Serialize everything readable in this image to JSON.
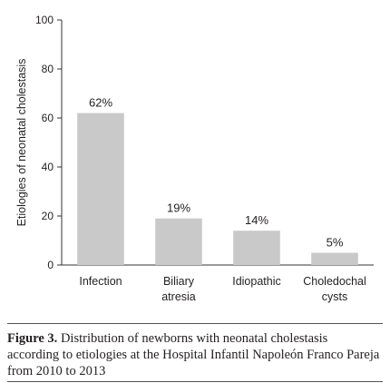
{
  "chart_data": {
    "type": "bar",
    "categories": [
      [
        "Infection"
      ],
      [
        "Biliary",
        "atresia"
      ],
      [
        "Idiopathic"
      ],
      [
        "Choledochal",
        "cysts"
      ]
    ],
    "values": [
      62,
      19,
      14,
      5
    ],
    "data_labels": [
      "62%",
      "19%",
      "14%",
      "5%"
    ],
    "ylabel": "Etiologies of neonatal cholestasis",
    "xlabel": "",
    "ylim": [
      0,
      100
    ],
    "yticks": [
      0,
      20,
      40,
      60,
      80,
      100
    ],
    "grid": false,
    "legend": "none",
    "colors": {
      "bar": "#c9c9c9",
      "axis": "#333333",
      "text": "#231f20"
    }
  },
  "caption": {
    "label": "Figure 3.",
    "text": " Distribution of newborns with neonatal cholestasis according to etiologies at the Hospital Infantil Napoleón Franco Pareja from 2010 to 2013"
  }
}
